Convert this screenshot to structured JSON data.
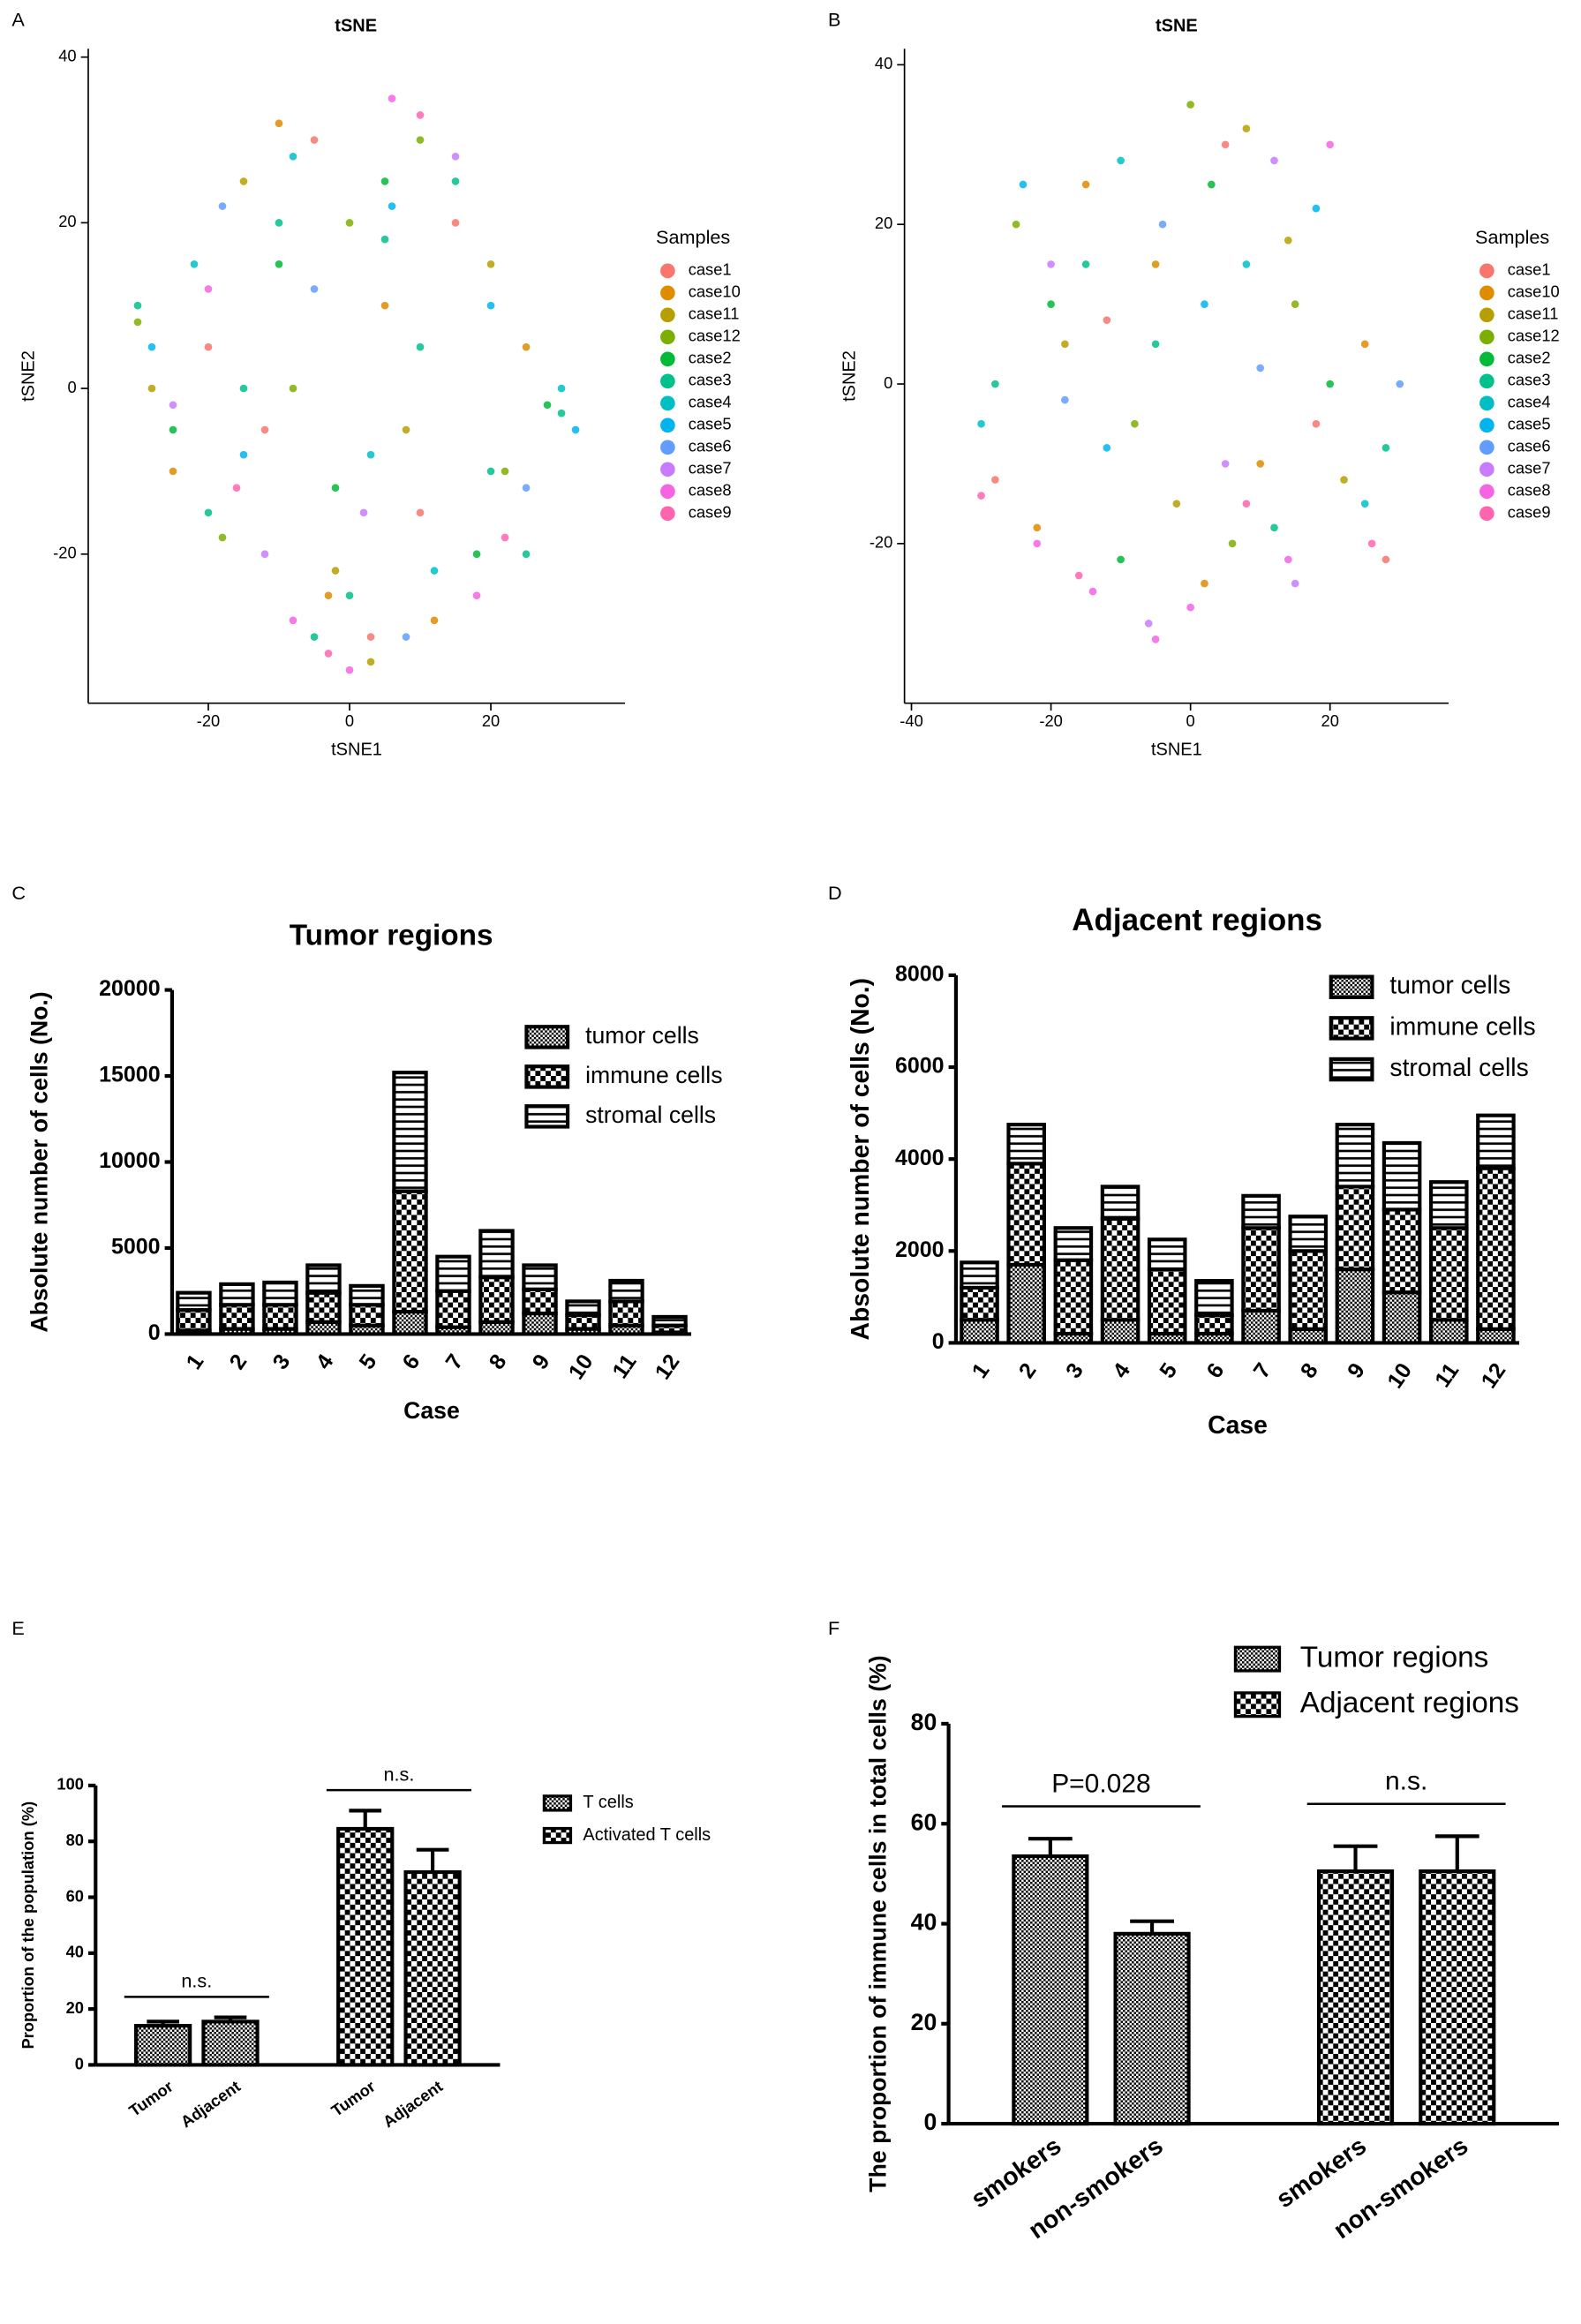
{
  "chart_data": [
    {
      "type": "scatter",
      "panel": "A",
      "title": "tSNE",
      "x_label": "tSNE1",
      "y_label": "tSNE2",
      "legend_title": "Samples",
      "xlim": [
        -37,
        39
      ],
      "ylim": [
        -38,
        41
      ],
      "xticks": [
        -20,
        0,
        20
      ],
      "yticks": [
        -20,
        0,
        20,
        40
      ],
      "series": [
        {
          "name": "case1",
          "color": "#F8766D",
          "x": [
            -5,
            10,
            -20,
            3,
            15,
            -12
          ],
          "y": [
            30,
            -15,
            5,
            -30,
            20,
            -5
          ]
        },
        {
          "name": "case10",
          "color": "#DE8C00",
          "x": [
            -10,
            25,
            -3,
            5,
            -25,
            12
          ],
          "y": [
            32,
            5,
            -25,
            10,
            -10,
            -28
          ]
        },
        {
          "name": "case11",
          "color": "#B79F00",
          "x": [
            -2,
            20,
            -15,
            8,
            -28,
            3
          ],
          "y": [
            -22,
            15,
            25,
            -5,
            0,
            -33
          ]
        },
        {
          "name": "case12",
          "color": "#7CAE00",
          "x": [
            -30,
            -18,
            0,
            22,
            10,
            -8
          ],
          "y": [
            8,
            -18,
            20,
            -10,
            30,
            0
          ]
        },
        {
          "name": "case2",
          "color": "#00BA38",
          "x": [
            -25,
            5,
            18,
            -10,
            28,
            -2
          ],
          "y": [
            -5,
            25,
            -20,
            15,
            -2,
            -12
          ]
        },
        {
          "name": "case3",
          "color": "#00C08B",
          "x": [
            -30,
            -20,
            -10,
            0,
            10,
            20,
            30,
            -15,
            5,
            25,
            -5,
            15
          ],
          "y": [
            10,
            -15,
            20,
            -25,
            5,
            -10,
            -3,
            0,
            18,
            -20,
            -30,
            25
          ]
        },
        {
          "name": "case4",
          "color": "#00BFC4",
          "x": [
            -22,
            12,
            30,
            -8,
            3
          ],
          "y": [
            15,
            -22,
            0,
            28,
            -8
          ]
        },
        {
          "name": "case5",
          "color": "#00B4F0",
          "x": [
            -15,
            20,
            32,
            -28,
            6
          ],
          "y": [
            -8,
            10,
            -5,
            5,
            22
          ]
        },
        {
          "name": "case6",
          "color": "#619CFF",
          "x": [
            -18,
            8,
            25,
            -5
          ],
          "y": [
            22,
            -30,
            -12,
            12
          ]
        },
        {
          "name": "case7",
          "color": "#C77CFF",
          "x": [
            -12,
            15,
            -25,
            2
          ],
          "y": [
            -20,
            28,
            -2,
            -15
          ]
        },
        {
          "name": "case8",
          "color": "#F564E3",
          "x": [
            -8,
            18,
            -20,
            0,
            6
          ],
          "y": [
            -28,
            -25,
            12,
            -34,
            35
          ]
        },
        {
          "name": "case9",
          "color": "#FF64B0",
          "x": [
            -3,
            22,
            -16,
            10
          ],
          "y": [
            -32,
            -18,
            -12,
            33
          ]
        }
      ]
    },
    {
      "type": "scatter",
      "panel": "B",
      "title": "tSNE",
      "x_label": "tSNE1",
      "y_label": "tSNE2",
      "legend_title": "Samples",
      "xlim": [
        -41,
        37
      ],
      "ylim": [
        -40,
        42
      ],
      "xticks": [
        -40,
        -20,
        0,
        20
      ],
      "yticks": [
        -20,
        0,
        20,
        40
      ],
      "series": [
        {
          "name": "case1",
          "color": "#F8766D",
          "x": [
            -28,
            5,
            -12,
            18,
            28
          ],
          "y": [
            -12,
            30,
            8,
            -5,
            -22
          ]
        },
        {
          "name": "case10",
          "color": "#DE8C00",
          "x": [
            -22,
            -5,
            10,
            25,
            -15,
            2
          ],
          "y": [
            -18,
            15,
            -10,
            5,
            25,
            -25
          ]
        },
        {
          "name": "case11",
          "color": "#B79F00",
          "x": [
            -18,
            8,
            -2,
            22,
            14
          ],
          "y": [
            5,
            32,
            -15,
            -12,
            18
          ]
        },
        {
          "name": "case12",
          "color": "#7CAE00",
          "x": [
            -25,
            0,
            15,
            -8,
            6
          ],
          "y": [
            20,
            35,
            10,
            -5,
            -20
          ]
        },
        {
          "name": "case2",
          "color": "#00BA38",
          "x": [
            -20,
            3,
            20,
            -10
          ],
          "y": [
            10,
            25,
            0,
            -22
          ]
        },
        {
          "name": "case3",
          "color": "#00C08B",
          "x": [
            -15,
            12,
            -5,
            28,
            -28
          ],
          "y": [
            15,
            -18,
            5,
            -8,
            0
          ]
        },
        {
          "name": "case4",
          "color": "#00BFC4",
          "x": [
            -30,
            -10,
            8,
            25
          ],
          "y": [
            -5,
            28,
            15,
            -15
          ]
        },
        {
          "name": "case5",
          "color": "#00B4F0",
          "x": [
            -24,
            2,
            18,
            -12
          ],
          "y": [
            25,
            10,
            22,
            -8
          ]
        },
        {
          "name": "case6",
          "color": "#619CFF",
          "x": [
            -18,
            10,
            -4,
            30
          ],
          "y": [
            -2,
            2,
            20,
            0
          ]
        },
        {
          "name": "case7",
          "color": "#C77CFF",
          "x": [
            -6,
            15,
            -20,
            5,
            12
          ],
          "y": [
            -30,
            -25,
            15,
            -10,
            28
          ]
        },
        {
          "name": "case8",
          "color": "#F564E3",
          "x": [
            -22,
            -5,
            0,
            14,
            20,
            -14
          ],
          "y": [
            -20,
            -32,
            -28,
            -22,
            30,
            -26
          ]
        },
        {
          "name": "case9",
          "color": "#FF64B0",
          "x": [
            -30,
            -16,
            8,
            26
          ],
          "y": [
            -14,
            -24,
            -15,
            -20
          ]
        }
      ]
    },
    {
      "type": "stacked_bar",
      "panel": "C",
      "title": "Tumor regions",
      "x_label": "Case",
      "y_label": "Absolute number of cells (No.)",
      "categories": [
        "1",
        "2",
        "3",
        "4",
        "5",
        "6",
        "7",
        "8",
        "9",
        "10",
        "11",
        "12"
      ],
      "ylim": [
        0,
        20000
      ],
      "yticks": [
        0,
        5000,
        10000,
        15000,
        20000
      ],
      "series": [
        {
          "name": "tumor cells",
          "pattern": "fine-check",
          "values": [
            200,
            300,
            300,
            700,
            500,
            1300,
            400,
            700,
            1200,
            300,
            500,
            100
          ]
        },
        {
          "name": "immune cells",
          "pattern": "check",
          "values": [
            1200,
            1400,
            1400,
            1700,
            1200,
            7000,
            2100,
            2600,
            1400,
            800,
            1400,
            400
          ]
        },
        {
          "name": "stromal cells",
          "pattern": "hlines",
          "values": [
            1000,
            1200,
            1300,
            1600,
            1100,
            6900,
            2000,
            2700,
            1400,
            800,
            1200,
            500
          ]
        }
      ]
    },
    {
      "type": "stacked_bar",
      "panel": "D",
      "title": "Adjacent regions",
      "x_label": "Case",
      "y_label": "Absolute number of cells (No.)",
      "categories": [
        "1",
        "2",
        "3",
        "4",
        "5",
        "6",
        "7",
        "8",
        "9",
        "10",
        "11",
        "12"
      ],
      "ylim": [
        0,
        8000
      ],
      "yticks": [
        0,
        2000,
        4000,
        6000,
        8000
      ],
      "series": [
        {
          "name": "tumor cells",
          "pattern": "fine-check",
          "values": [
            500,
            1700,
            200,
            500,
            200,
            200,
            700,
            300,
            1600,
            1100,
            500,
            300
          ]
        },
        {
          "name": "immune cells",
          "pattern": "check",
          "values": [
            700,
            2200,
            1600,
            2200,
            1400,
            400,
            1800,
            1700,
            1800,
            1800,
            2000,
            3500
          ]
        },
        {
          "name": "stromal cells",
          "pattern": "hlines",
          "values": [
            550,
            850,
            700,
            700,
            650,
            750,
            700,
            750,
            1350,
            1450,
            1000,
            1150
          ]
        }
      ]
    },
    {
      "type": "bar",
      "panel": "E",
      "y_label": "Proportion of the population (%)",
      "categories": [
        "Tumor",
        "Adjacent"
      ],
      "ylim": [
        0,
        100
      ],
      "yticks": [
        0,
        20,
        40,
        60,
        80,
        100
      ],
      "series": [
        {
          "name": "T cells",
          "pattern": "fine-check",
          "values": [
            14,
            15.5
          ],
          "errors": [
            1.5,
            1.5
          ]
        },
        {
          "name": "Activated T cells",
          "pattern": "check",
          "values": [
            84.5,
            69
          ],
          "errors": [
            6.5,
            8
          ]
        }
      ],
      "annotations": [
        {
          "text": "n.s."
        },
        {
          "text": "n.s."
        }
      ]
    },
    {
      "type": "bar",
      "panel": "F",
      "y_label": "The proportion of immune cells in total cells (%)",
      "categories": [
        "smokers",
        "non-smokers"
      ],
      "ylim": [
        0,
        80
      ],
      "yticks": [
        0,
        20,
        40,
        60,
        80
      ],
      "series": [
        {
          "name": "Tumor regions",
          "pattern": "fine-check",
          "values": [
            53.5,
            38
          ],
          "errors": [
            3.5,
            2.5
          ]
        },
        {
          "name": "Adjacent regions",
          "pattern": "check",
          "values": [
            50.5,
            50.5
          ],
          "errors": [
            5,
            7
          ]
        }
      ],
      "annotations": [
        {
          "text": "P=0.028"
        },
        {
          "text": "n.s."
        }
      ]
    }
  ]
}
